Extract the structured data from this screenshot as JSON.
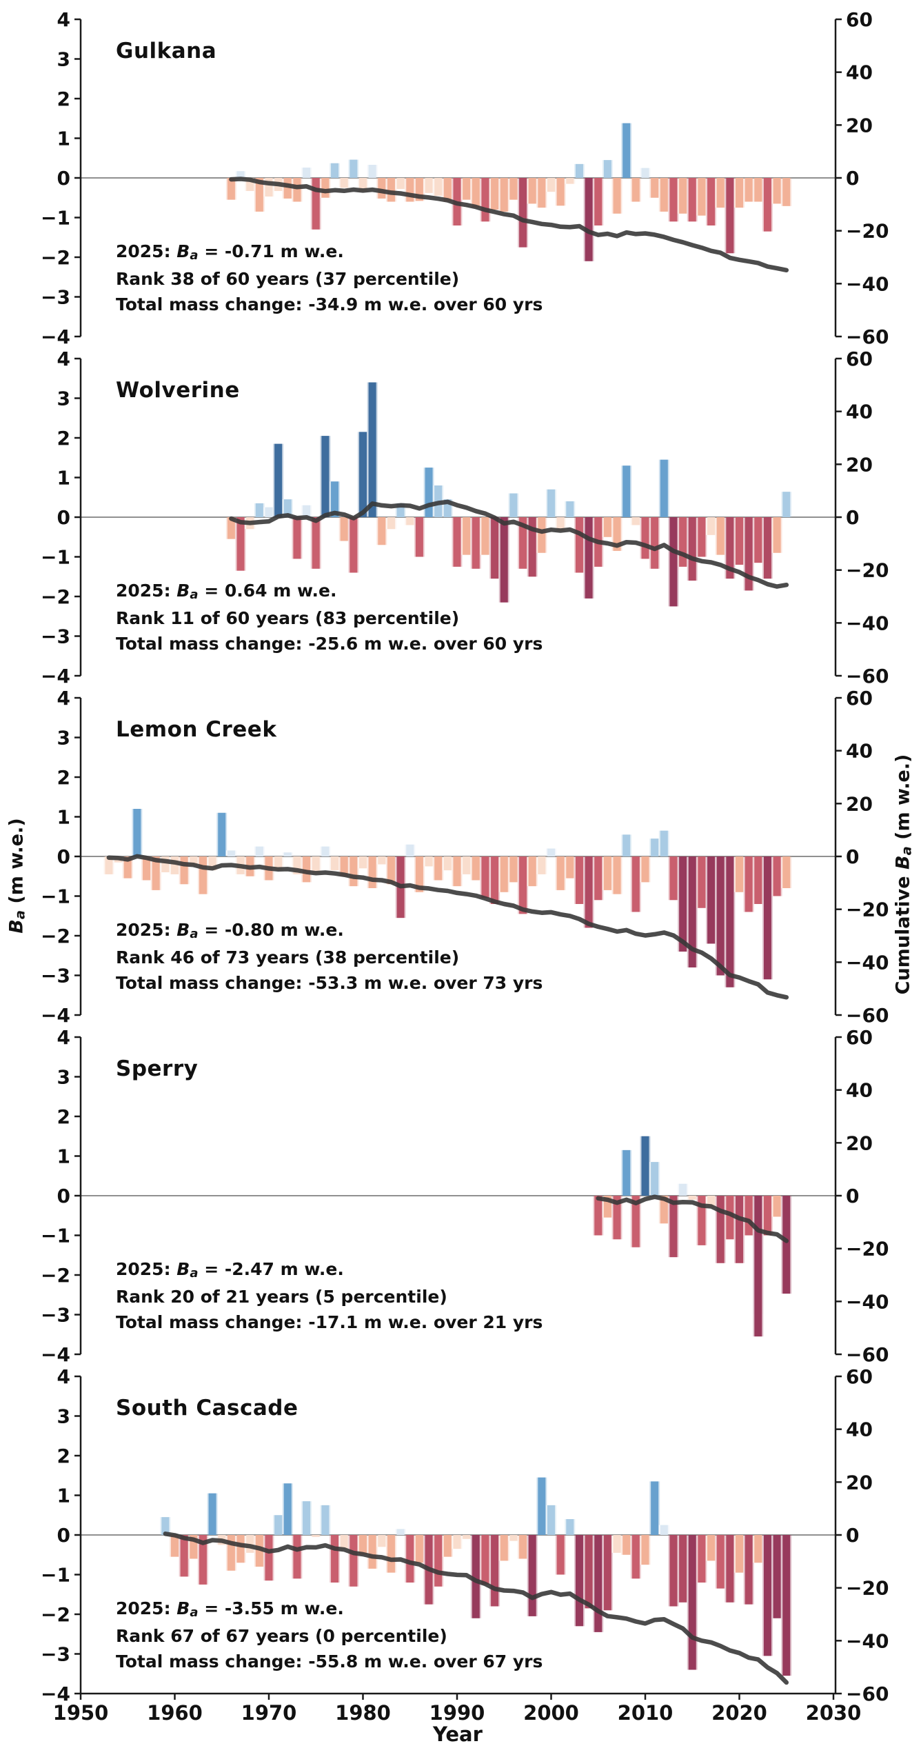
{
  "figure": {
    "xlabel": "Year",
    "x_ticks": [
      "1950",
      "1960",
      "1970",
      "1980",
      "1990",
      "2000",
      "2010",
      "2020",
      "2030"
    ],
    "x_tick_years": [
      1950,
      1960,
      1970,
      1980,
      1990,
      2000,
      2010,
      2020,
      2030
    ],
    "left_ticks": [
      "4",
      "3",
      "2",
      "1",
      "0",
      "−1",
      "−2",
      "−3",
      "−4"
    ],
    "right_ticks": [
      "60",
      "40",
      "20",
      "0",
      "−20",
      "−40",
      "−60"
    ],
    "ylabel_left": {
      "symbol": "B",
      "sub": "a",
      "post": " (m w.e.)"
    },
    "ylabel_right": {
      "pre": "Cumulative ",
      "symbol": "B",
      "sub": "a",
      "post": " (m w.e.)"
    }
  },
  "palette": {
    "positive_bins": [
      {
        "lt": 0.35,
        "color": "#dce8f3"
      },
      {
        "lt": 0.9,
        "color": "#a9cbe4"
      },
      {
        "lt": 1.48,
        "color": "#68a1ce"
      },
      {
        "lt": 99,
        "color": "#3e6d9e"
      }
    ],
    "negative_bins": [
      {
        "gt": -0.5,
        "color": "#f9ddcd"
      },
      {
        "gt": -1.0,
        "color": "#f2b197"
      },
      {
        "gt": -1.5,
        "color": "#c95f6e"
      },
      {
        "gt": -2.0,
        "color": "#b04a63"
      },
      {
        "gt": -99,
        "color": "#973a5c"
      }
    ],
    "cumulative_line": "#383838",
    "zero_line": "#909090",
    "axis": "#1a1a1a",
    "text": "#111111"
  },
  "chart_data": [
    {
      "type": "bar+line",
      "name": "gulkana",
      "title": "Gulkana",
      "start_year": 1966,
      "end_year": 2025,
      "ylim": [
        -4,
        4
      ],
      "y2lim": [
        -60,
        60
      ],
      "ylabel": "Ba (m w.e.)",
      "y2label": "Cumulative Ba (m w.e.)",
      "values": [
        -0.55,
        0.17,
        -0.33,
        -0.85,
        -0.47,
        -0.33,
        -0.52,
        -0.6,
        0.26,
        -1.3,
        -0.5,
        0.37,
        -0.25,
        0.46,
        -0.35,
        0.33,
        -0.52,
        -0.6,
        -0.28,
        -0.6,
        -0.58,
        -0.38,
        -0.45,
        -0.6,
        -1.2,
        -0.55,
        -0.75,
        -1.1,
        -0.8,
        -0.85,
        -0.55,
        -1.75,
        -0.65,
        -0.75,
        -0.35,
        -0.7,
        -0.15,
        0.35,
        -2.1,
        -1.2,
        0.45,
        -0.9,
        1.38,
        -0.6,
        0.25,
        -0.5,
        -0.85,
        -1.1,
        -0.9,
        -1.1,
        -0.95,
        -1.2,
        -0.75,
        -1.9,
        -0.75,
        -0.6,
        -0.6,
        -1.35,
        -0.65,
        -0.71
      ],
      "annotation": {
        "prefix": "2025: ",
        "symbol": "B",
        "symbol_sub": "a",
        "value_text": " = -0.71 m w.e.",
        "rank_text": "Rank 38 of 60 years (37 percentile)",
        "total_text": "Total mass change: -34.9 m w.e. over 60 yrs"
      }
    },
    {
      "type": "bar+line",
      "name": "wolverine",
      "title": "Wolverine",
      "start_year": 1966,
      "end_year": 2025,
      "ylim": [
        -4,
        4
      ],
      "y2lim": [
        -60,
        60
      ],
      "ylabel": "Ba (m w.e.)",
      "y2label": "Cumulative Ba (m w.e.)",
      "values": [
        -0.55,
        -1.35,
        -0.3,
        0.35,
        0.25,
        1.85,
        0.45,
        -1.05,
        0.3,
        -1.3,
        2.05,
        0.9,
        -0.6,
        -1.4,
        2.15,
        3.4,
        -0.7,
        -0.3,
        0.35,
        -0.2,
        -1.0,
        1.25,
        0.8,
        0.45,
        -1.25,
        -0.95,
        -1.3,
        -0.95,
        -1.55,
        -2.15,
        0.6,
        -1.3,
        -1.5,
        -0.9,
        0.7,
        -0.35,
        0.4,
        -1.4,
        -2.05,
        -1.25,
        -0.5,
        -0.85,
        1.3,
        -0.2,
        -1.05,
        -1.3,
        1.45,
        -2.25,
        -1.25,
        -1.6,
        -1.0,
        -0.45,
        -0.95,
        -1.55,
        -1.2,
        -1.85,
        -1.15,
        -1.55,
        -0.9,
        0.64
      ],
      "annotation": {
        "prefix": "2025: ",
        "symbol": "B",
        "symbol_sub": "a",
        "value_text": " = 0.64 m w.e.",
        "rank_text": "Rank 11 of 60 years (83 percentile)",
        "total_text": "Total mass change: -25.6 m w.e. over 60 yrs"
      }
    },
    {
      "type": "bar+line",
      "name": "lemon-creek",
      "title": "Lemon Creek",
      "start_year": 1953,
      "end_year": 2025,
      "ylim": [
        -4,
        4
      ],
      "y2lim": [
        -60,
        60
      ],
      "ylabel": "Ba (m w.e.)",
      "y2label": "Cumulative Ba (m w.e.)",
      "values": [
        -0.45,
        -0.15,
        -0.55,
        1.2,
        -0.6,
        -0.85,
        -0.4,
        -0.45,
        -0.7,
        -0.25,
        -0.95,
        -0.35,
        1.1,
        0.15,
        -0.45,
        -0.5,
        0.25,
        -0.6,
        -0.35,
        0.1,
        -0.45,
        -0.65,
        -0.45,
        0.25,
        -0.35,
        -0.5,
        -0.75,
        -0.3,
        -0.8,
        -0.2,
        -0.7,
        -1.55,
        0.3,
        -0.9,
        -0.25,
        -0.6,
        -0.35,
        -0.75,
        -0.45,
        -0.6,
        -1.05,
        -1.2,
        -0.9,
        -0.65,
        -1.45,
        -0.75,
        -0.45,
        0.2,
        -0.85,
        -0.55,
        -1.2,
        -1.8,
        -1.1,
        -0.85,
        -0.95,
        0.55,
        -1.4,
        -0.65,
        0.45,
        0.65,
        -1.1,
        -2.4,
        -2.8,
        -1.3,
        -2.2,
        -3.0,
        -3.3,
        -0.9,
        -1.4,
        -1.2,
        -3.1,
        -1.0,
        -0.8
      ],
      "annotation": {
        "prefix": "2025: ",
        "symbol": "B",
        "symbol_sub": "a",
        "value_text": " = -0.80 m w.e.",
        "rank_text": "Rank 46 of 73 years (38 percentile)",
        "total_text": "Total mass change: -53.3 m w.e. over 73 yrs"
      }
    },
    {
      "type": "bar+line",
      "name": "sperry",
      "title": "Sperry",
      "start_year": 2005,
      "end_year": 2025,
      "ylim": [
        -4,
        4
      ],
      "y2lim": [
        -60,
        60
      ],
      "ylabel": "Ba (m w.e.)",
      "y2label": "Cumulative Ba (m w.e.)",
      "values": [
        -1.0,
        -0.55,
        -1.1,
        1.15,
        -1.3,
        1.5,
        0.85,
        -0.7,
        -1.55,
        0.3,
        -0.1,
        -1.25,
        -0.3,
        -1.7,
        -1.1,
        -1.7,
        -1.0,
        -3.55,
        -1.0,
        -0.53,
        -2.47
      ],
      "annotation": {
        "prefix": "2025: ",
        "symbol": "B",
        "symbol_sub": "a",
        "value_text": " = -2.47 m w.e.",
        "rank_text": "Rank 20 of 21 years (5 percentile)",
        "total_text": "Total mass change: -17.1 m w.e. over 21 yrs"
      }
    },
    {
      "type": "bar+line",
      "name": "south-cascade",
      "title": "South Cascade",
      "start_year": 1959,
      "end_year": 2025,
      "ylim": [
        -4,
        4
      ],
      "y2lim": [
        -60,
        60
      ],
      "ylabel": "Ba (m w.e.)",
      "y2label": "Cumulative Ba (m w.e.)",
      "values": [
        0.45,
        -0.55,
        -1.05,
        -0.6,
        -1.25,
        1.05,
        -0.25,
        -0.9,
        -0.7,
        -0.45,
        -0.8,
        -1.15,
        0.5,
        1.3,
        -1.1,
        0.85,
        -0.05,
        0.75,
        -1.2,
        -0.35,
        -1.3,
        -0.5,
        -0.85,
        -0.3,
        -0.95,
        0.15,
        -1.2,
        -0.7,
        -1.75,
        -1.3,
        -0.55,
        -0.35,
        -0.1,
        -2.1,
        -1.25,
        -1.8,
        -0.65,
        -0.15,
        -0.6,
        -2.05,
        1.45,
        0.75,
        -1.0,
        0.4,
        -2.3,
        -1.85,
        -2.45,
        -1.9,
        -0.45,
        -0.5,
        -1.1,
        -0.75,
        1.35,
        0.25,
        -1.8,
        -1.7,
        -3.4,
        -1.2,
        -0.65,
        -1.35,
        -1.7,
        -0.95,
        -1.75,
        -0.7,
        -3.05,
        -2.1,
        -3.55
      ],
      "annotation": {
        "prefix": "2025: ",
        "symbol": "B",
        "symbol_sub": "a",
        "value_text": " = -3.55 m w.e.",
        "rank_text": "Rank 67 of 67 years (0 percentile)",
        "total_text": "Total mass change: -55.8 m w.e. over 67 yrs"
      }
    }
  ]
}
